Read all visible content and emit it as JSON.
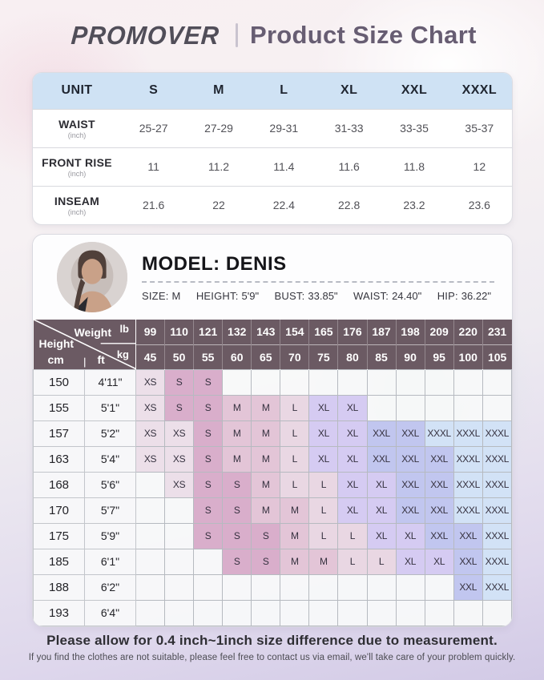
{
  "header": {
    "brand": "PROMOVER",
    "title": "Product Size Chart"
  },
  "measurement_table": {
    "columns": [
      "UNIT",
      "S",
      "M",
      "L",
      "XL",
      "XXL",
      "XXXL"
    ],
    "rows": [
      {
        "label": "WAIST",
        "unit": "(inch)",
        "values": [
          "25-27",
          "27-29",
          "29-31",
          "31-33",
          "33-35",
          "35-37"
        ]
      },
      {
        "label": "FRONT RISE",
        "unit": "(inch)",
        "values": [
          "11",
          "11.2",
          "11.4",
          "11.6",
          "11.8",
          "12"
        ]
      },
      {
        "label": "INSEAM",
        "unit": "(inch)",
        "values": [
          "21.6",
          "22",
          "22.4",
          "22.8",
          "23.2",
          "23.6"
        ]
      }
    ]
  },
  "model": {
    "title": "MODEL: DENIS",
    "stats": [
      {
        "label": "SIZE:",
        "value": "M"
      },
      {
        "label": "HEIGHT:",
        "value": "5'9\""
      },
      {
        "label": "BUST:",
        "value": "33.85\""
      },
      {
        "label": "WAIST:",
        "value": "24.40\""
      },
      {
        "label": "HIP:",
        "value": "36.22\""
      }
    ]
  },
  "size_matrix": {
    "corner": {
      "weight_label": "Weight",
      "height_label": "Height",
      "lb_label": "lb",
      "kg_label": "kg",
      "cm_label": "cm",
      "ft_label": "ft"
    },
    "weights_lb": [
      "99",
      "110",
      "121",
      "132",
      "143",
      "154",
      "165",
      "176",
      "187",
      "198",
      "209",
      "220",
      "231"
    ],
    "weights_kg": [
      "45",
      "50",
      "55",
      "60",
      "65",
      "70",
      "75",
      "80",
      "85",
      "90",
      "95",
      "100",
      "105"
    ],
    "rows": [
      {
        "cm": "150",
        "ft": "4'11\"",
        "sizes": [
          "XS",
          "S",
          "S",
          "",
          "",
          "",
          "",
          "",
          "",
          "",
          "",
          "",
          ""
        ]
      },
      {
        "cm": "155",
        "ft": "5'1\"",
        "sizes": [
          "XS",
          "S",
          "S",
          "M",
          "M",
          "L",
          "XL",
          "XL",
          "",
          "",
          "",
          "",
          ""
        ]
      },
      {
        "cm": "157",
        "ft": "5'2\"",
        "sizes": [
          "XS",
          "XS",
          "S",
          "M",
          "M",
          "L",
          "XL",
          "XL",
          "XXL",
          "XXL",
          "XXXL",
          "XXXL",
          "XXXL"
        ]
      },
      {
        "cm": "163",
        "ft": "5'4\"",
        "sizes": [
          "XS",
          "XS",
          "S",
          "M",
          "M",
          "L",
          "XL",
          "XL",
          "XXL",
          "XXL",
          "XXL",
          "XXXL",
          "XXXL"
        ]
      },
      {
        "cm": "168",
        "ft": "5'6\"",
        "sizes": [
          "",
          "XS",
          "S",
          "S",
          "M",
          "L",
          "L",
          "XL",
          "XL",
          "XXL",
          "XXL",
          "XXXL",
          "XXXL"
        ]
      },
      {
        "cm": "170",
        "ft": "5'7\"",
        "sizes": [
          "",
          "",
          "S",
          "S",
          "M",
          "M",
          "L",
          "XL",
          "XL",
          "XXL",
          "XXL",
          "XXXL",
          "XXXL"
        ]
      },
      {
        "cm": "175",
        "ft": "5'9\"",
        "sizes": [
          "",
          "",
          "S",
          "S",
          "S",
          "M",
          "L",
          "L",
          "XL",
          "XL",
          "XXL",
          "XXL",
          "XXXL"
        ]
      },
      {
        "cm": "185",
        "ft": "6'1\"",
        "sizes": [
          "",
          "",
          "",
          "S",
          "S",
          "M",
          "M",
          "L",
          "L",
          "XL",
          "XL",
          "XXL",
          "XXXL"
        ]
      },
      {
        "cm": "188",
        "ft": "6'2\"",
        "sizes": [
          "",
          "",
          "",
          "",
          "",
          "",
          "",
          "",
          "",
          "",
          "",
          "XXL",
          "XXXL"
        ]
      },
      {
        "cm": "193",
        "ft": "6'4\"",
        "sizes": [
          "",
          "",
          "",
          "",
          "",
          "",
          "",
          "",
          "",
          "",
          "",
          "",
          ""
        ]
      }
    ],
    "size_colors": {
      "XS": "#ecdfe9",
      "S": "#d9aecb",
      "M": "#e3c5d7",
      "L": "#e9d7e3",
      "XL": "#d5cbf2",
      "XXL": "#c1c6ef",
      "XXXL": "#d2e2f6"
    }
  },
  "footer": {
    "note": "Please allow for 0.4 inch~1inch size difference due to measurement.",
    "subnote": "If you find the clothes are not suitable, please feel free to contact us via email, we'll take care of your problem quickly."
  },
  "colors": {
    "brand_color": "#514e59",
    "accent_title": "#675d72",
    "table_header_bg": "#cfe2f4",
    "matrix_header_bg": "#6b5a63"
  }
}
